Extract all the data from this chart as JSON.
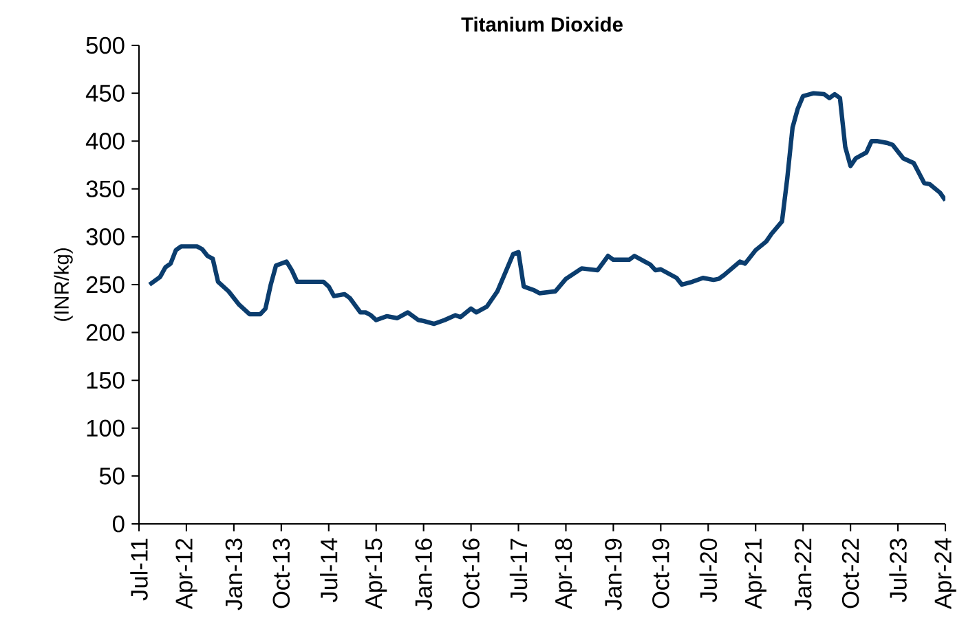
{
  "chart_data": {
    "type": "line",
    "title": "Titanium Dioxide",
    "ylabel": "(INR/kg)",
    "color": "#0b3d6e",
    "grid": false,
    "marker": "none",
    "line_style": "solid",
    "xlim": [
      "2011-07",
      "2024-04"
    ],
    "xticks": [
      {
        "value": "2011-07",
        "label": "Jul-11"
      },
      {
        "value": "2012-04",
        "label": "Apr-12"
      },
      {
        "value": "2013-01",
        "label": "Jan-13"
      },
      {
        "value": "2013-10",
        "label": "Oct-13"
      },
      {
        "value": "2014-07",
        "label": "Jul-14"
      },
      {
        "value": "2015-04",
        "label": "Apr-15"
      },
      {
        "value": "2016-01",
        "label": "Jan-16"
      },
      {
        "value": "2016-10",
        "label": "Oct-16"
      },
      {
        "value": "2017-07",
        "label": "Jul-17"
      },
      {
        "value": "2018-04",
        "label": "Apr-18"
      },
      {
        "value": "2019-01",
        "label": "Jan-19"
      },
      {
        "value": "2019-10",
        "label": "Oct-19"
      },
      {
        "value": "2020-07",
        "label": "Jul-20"
      },
      {
        "value": "2021-04",
        "label": "Apr-21"
      },
      {
        "value": "2022-01",
        "label": "Jan-22"
      },
      {
        "value": "2022-10",
        "label": "Oct-22"
      },
      {
        "value": "2023-07",
        "label": "Jul-23"
      },
      {
        "value": "2024-04",
        "label": "Apr-24"
      }
    ],
    "ylim": [
      0,
      500
    ],
    "yticks": [
      0,
      50,
      100,
      150,
      200,
      250,
      300,
      350,
      400,
      450,
      500
    ],
    "x": [
      "2011-09",
      "2011-11",
      "2011-12",
      "2012-01",
      "2012-02",
      "2012-03",
      "2012-06",
      "2012-07",
      "2012-08",
      "2012-09",
      "2012-10",
      "2012-12",
      "2013-02",
      "2013-03",
      "2013-04",
      "2013-06",
      "2013-07",
      "2013-08",
      "2013-09",
      "2013-10",
      "2013-11",
      "2013-12",
      "2014-01",
      "2014-06",
      "2014-07",
      "2014-08",
      "2014-10",
      "2014-11",
      "2015-01",
      "2015-02",
      "2015-03",
      "2015-04",
      "2015-06",
      "2015-08",
      "2015-10",
      "2015-12",
      "2016-01",
      "2016-03",
      "2016-05",
      "2016-07",
      "2016-08",
      "2016-10",
      "2016-11",
      "2017-01",
      "2017-03",
      "2017-04",
      "2017-06",
      "2017-07",
      "2017-08",
      "2017-10",
      "2017-11",
      "2018-02",
      "2018-04",
      "2018-07",
      "2018-10",
      "2018-12",
      "2019-01",
      "2019-04",
      "2019-05",
      "2019-07",
      "2019-08",
      "2019-09",
      "2019-10",
      "2020-01",
      "2020-02",
      "2020-04",
      "2020-06",
      "2020-08",
      "2020-09",
      "2020-10",
      "2021-01",
      "2021-02",
      "2021-04",
      "2021-06",
      "2021-07",
      "2021-09",
      "2021-10",
      "2021-11",
      "2021-12",
      "2022-01",
      "2022-03",
      "2022-05",
      "2022-06",
      "2022-07",
      "2022-08",
      "2022-09",
      "2022-10",
      "2022-11",
      "2023-01",
      "2023-02",
      "2023-03",
      "2023-05",
      "2023-06",
      "2023-08",
      "2023-10",
      "2023-12",
      "2024-01",
      "2024-03",
      "2024-04"
    ],
    "values": [
      250,
      258,
      268,
      272,
      286,
      290,
      290,
      287,
      280,
      277,
      253,
      243,
      229,
      224,
      219,
      219,
      225,
      250,
      270,
      272,
      274,
      265,
      253,
      253,
      248,
      238,
      240,
      236,
      221,
      221,
      218,
      213,
      217,
      215,
      221,
      213,
      212,
      209,
      213,
      218,
      216,
      225,
      221,
      227,
      243,
      256,
      282,
      284,
      248,
      244,
      241,
      243,
      256,
      267,
      265,
      280,
      276,
      276,
      280,
      274,
      271,
      265,
      266,
      257,
      250,
      253,
      257,
      255,
      256,
      260,
      274,
      272,
      286,
      295,
      303,
      316,
      361,
      414,
      434,
      447,
      450,
      449,
      445,
      449,
      445,
      394,
      374,
      382,
      388,
      400,
      400,
      398,
      396,
      382,
      377,
      356,
      355,
      346,
      338
    ]
  }
}
